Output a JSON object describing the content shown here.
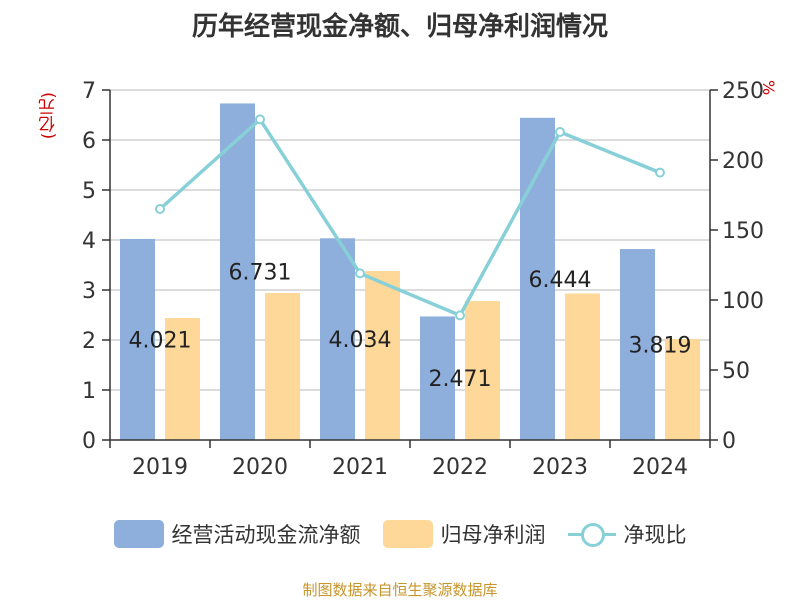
{
  "title": "历年经营现金净额、归母净利润情况",
  "unit_left": "(亿元)",
  "unit_right": "%",
  "source": "制图数据来自恒生聚源数据库",
  "colors": {
    "cashflow": "#8eaedc",
    "profit": "#fdd898",
    "ratio": "#88d0d8"
  },
  "legend": {
    "cashflow": "经营活动现金流净额",
    "profit": "归母净利润",
    "ratio": "净现比"
  },
  "chart_data": {
    "type": "bar",
    "title": "历年经营现金净额、归母净利润情况",
    "categories": [
      "2019",
      "2020",
      "2021",
      "2022",
      "2023",
      "2024"
    ],
    "series": [
      {
        "name": "经营活动现金流净额",
        "axis": "left",
        "type": "bar",
        "values": [
          4.021,
          6.731,
          4.034,
          2.471,
          6.444,
          3.819
        ],
        "labels": [
          "4.021",
          "6.731",
          "4.034",
          "2.471",
          "6.444",
          "3.819"
        ]
      },
      {
        "name": "归母净利润",
        "axis": "left",
        "type": "bar",
        "values": [
          2.44,
          2.94,
          3.38,
          2.78,
          2.93,
          2.02
        ]
      },
      {
        "name": "净现比",
        "axis": "right",
        "type": "line",
        "values": [
          165,
          229,
          119,
          89,
          220,
          191
        ]
      }
    ],
    "ylim_left": [
      0,
      7
    ],
    "yticks_left": [
      0,
      1,
      2,
      3,
      4,
      5,
      6,
      7
    ],
    "ylim_right": [
      0,
      250
    ],
    "yticks_right": [
      0,
      50,
      100,
      150,
      200,
      250
    ],
    "ylabel_left": "(亿元)",
    "ylabel_right": "%",
    "grid": true,
    "legend_position": "bottom"
  }
}
